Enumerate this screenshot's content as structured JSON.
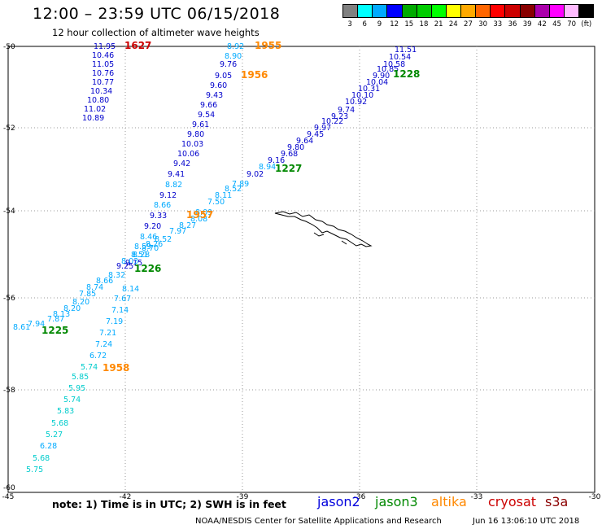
{
  "header": {
    "title": "12:00 – 23:59 UTC 06/15/2018",
    "subtitle": "12 hour collection of altimeter wave heights"
  },
  "legend": {
    "colors": [
      "#808080",
      "#00ffff",
      "#00aaff",
      "#0000ff",
      "#00aa00",
      "#00cc00",
      "#00ff00",
      "#ffff00",
      "#ffaa00",
      "#ff6600",
      "#ff0000",
      "#cc0000",
      "#880000",
      "#aa00aa",
      "#ff00ff",
      "#ffbbff",
      "#000000"
    ],
    "labels": [
      "3",
      "6",
      "9",
      "12",
      "15",
      "18",
      "21",
      "24",
      "27",
      "30",
      "33",
      "36",
      "39",
      "42",
      "45",
      "70",
      "(ft)"
    ]
  },
  "axes": {
    "lat_labels": [
      "-50",
      "-52",
      "-54",
      "-56",
      "-58",
      "-60"
    ],
    "lon_labels": [
      "-45",
      "-42",
      "-39",
      "-36",
      "-33",
      "-30"
    ]
  },
  "points": [
    {
      "v": "11.95",
      "c": "#0000cc"
    },
    {
      "v": "10.46",
      "c": "#0000cc"
    },
    {
      "v": "11.05",
      "c": "#0000cc"
    },
    {
      "v": "10.76",
      "c": "#0000cc"
    },
    {
      "v": "10.77",
      "c": "#0000cc"
    },
    {
      "v": "10.34",
      "c": "#0000cc"
    },
    {
      "v": "10.80",
      "c": "#0000cc"
    },
    {
      "v": "11.02",
      "c": "#0000cc"
    },
    {
      "v": "10.89",
      "c": "#0000cc"
    },
    {
      "v": "8.92",
      "c": "#00aaff"
    },
    {
      "v": "8.90",
      "c": "#00aaff"
    },
    {
      "v": "9.76",
      "c": "#0000cc"
    },
    {
      "v": "9.05",
      "c": "#0000cc"
    },
    {
      "v": "9.60",
      "c": "#0000cc"
    },
    {
      "v": "9.43",
      "c": "#0000cc"
    },
    {
      "v": "9.66",
      "c": "#0000cc"
    },
    {
      "v": "9.54",
      "c": "#0000cc"
    },
    {
      "v": "9.61",
      "c": "#0000cc"
    },
    {
      "v": "9.80",
      "c": "#0000cc"
    },
    {
      "v": "10.03",
      "c": "#0000cc"
    },
    {
      "v": "10.06",
      "c": "#0000cc"
    },
    {
      "v": "9.42",
      "c": "#0000cc"
    },
    {
      "v": "9.41",
      "c": "#0000cc"
    },
    {
      "v": "8.82",
      "c": "#00aaff"
    },
    {
      "v": "9.12",
      "c": "#0000cc"
    },
    {
      "v": "8.66",
      "c": "#00aaff"
    },
    {
      "v": "9.33",
      "c": "#0000cc"
    },
    {
      "v": "9.20",
      "c": "#0000cc"
    },
    {
      "v": "8.46",
      "c": "#00aaff"
    },
    {
      "v": "8.59",
      "c": "#00aaff"
    },
    {
      "v": "8.28",
      "c": "#00aaff"
    },
    {
      "v": "9.15",
      "c": "#0000cc"
    },
    {
      "v": "11.51",
      "c": "#0000cc"
    },
    {
      "v": "10.54",
      "c": "#0000cc"
    },
    {
      "v": "10.58",
      "c": "#0000cc"
    },
    {
      "v": "10.85",
      "c": "#0000cc"
    },
    {
      "v": "9.90",
      "c": "#0000cc"
    },
    {
      "v": "10.04",
      "c": "#0000cc"
    },
    {
      "v": "10.31",
      "c": "#0000cc"
    },
    {
      "v": "10.10",
      "c": "#0000cc"
    },
    {
      "v": "10.92",
      "c": "#0000cc"
    },
    {
      "v": "9.74",
      "c": "#0000cc"
    },
    {
      "v": "9.23",
      "c": "#0000cc"
    },
    {
      "v": "10.22",
      "c": "#0000cc"
    },
    {
      "v": "9.97",
      "c": "#0000cc"
    },
    {
      "v": "9.45",
      "c": "#0000cc"
    },
    {
      "v": "9.64",
      "c": "#0000cc"
    },
    {
      "v": "9.80",
      "c": "#0000cc"
    },
    {
      "v": "9.68",
      "c": "#0000cc"
    },
    {
      "v": "9.16",
      "c": "#0000cc"
    },
    {
      "v": "8.94",
      "c": "#00aaff"
    },
    {
      "v": "9.02",
      "c": "#0000cc"
    },
    {
      "v": "7.89",
      "c": "#00aaff"
    },
    {
      "v": "8.52",
      "c": "#00aaff"
    },
    {
      "v": "8.11",
      "c": "#00aaff"
    },
    {
      "v": "7.50",
      "c": "#00aaff"
    },
    {
      "v": "8.09",
      "c": "#00aaff"
    },
    {
      "v": "8.08",
      "c": "#00aaff"
    },
    {
      "v": "8.27",
      "c": "#00aaff"
    },
    {
      "v": "7.97",
      "c": "#00aaff"
    },
    {
      "v": "8.52",
      "c": "#00aaff"
    },
    {
      "v": "8.26",
      "c": "#00aaff"
    },
    {
      "v": "8.70",
      "c": "#00aaff"
    },
    {
      "v": "8.51",
      "c": "#00aaff"
    },
    {
      "v": "8.03",
      "c": "#00aaff"
    },
    {
      "v": "9.25",
      "c": "#0000cc"
    },
    {
      "v": "8.32",
      "c": "#00aaff"
    },
    {
      "v": "8.66",
      "c": "#00aaff"
    },
    {
      "v": "8.74",
      "c": "#00aaff"
    },
    {
      "v": "7.85",
      "c": "#00aaff"
    },
    {
      "v": "8.20",
      "c": "#00aaff"
    },
    {
      "v": "8.20",
      "c": "#00aaff"
    },
    {
      "v": "8.13",
      "c": "#00aaff"
    },
    {
      "v": "7.87",
      "c": "#00aaff"
    },
    {
      "v": "7.94",
      "c": "#00aaff"
    },
    {
      "v": "8.61",
      "c": "#00aaff"
    },
    {
      "v": "8.14",
      "c": "#00aaff"
    },
    {
      "v": "7.67",
      "c": "#00aaff"
    },
    {
      "v": "7.14",
      "c": "#00aaff"
    },
    {
      "v": "7.19",
      "c": "#00aaff"
    },
    {
      "v": "7.21",
      "c": "#00aaff"
    },
    {
      "v": "7.24",
      "c": "#00aaff"
    },
    {
      "v": "6.72",
      "c": "#00aaff"
    },
    {
      "v": "5.74",
      "c": "#00cccc"
    },
    {
      "v": "5.85",
      "c": "#00cccc"
    },
    {
      "v": "5.95",
      "c": "#00cccc"
    },
    {
      "v": "5.74",
      "c": "#00cccc"
    },
    {
      "v": "5.83",
      "c": "#00cccc"
    },
    {
      "v": "5.68",
      "c": "#00cccc"
    },
    {
      "v": "5.27",
      "c": "#00cccc"
    },
    {
      "v": "6.28",
      "c": "#00aaff"
    },
    {
      "v": "5.68",
      "c": "#00cccc"
    },
    {
      "v": "5.75",
      "c": "#00cccc"
    }
  ],
  "times": [
    {
      "t": "1627",
      "c": "#cc0000"
    },
    {
      "t": "1955",
      "c": "#ff8800"
    },
    {
      "t": "1956",
      "c": "#ff8800"
    },
    {
      "t": "1228",
      "c": "#008800"
    },
    {
      "t": "1227",
      "c": "#008800"
    },
    {
      "t": "1957",
      "c": "#ff8800"
    },
    {
      "t": "1226",
      "c": "#008800"
    },
    {
      "t": "1225",
      "c": "#008800"
    },
    {
      "t": "1958",
      "c": "#ff8800"
    }
  ],
  "footer": {
    "note": "note:  1) Time is in UTC;  2) SWH is in feet",
    "satellites": [
      {
        "name": "jason2",
        "color": "#0000dd"
      },
      {
        "name": "jason3",
        "color": "#008800"
      },
      {
        "name": "altika",
        "color": "#ff8800"
      },
      {
        "name": "cryosat",
        "color": "#cc0000"
      },
      {
        "name": "s3a",
        "color": "#8b0000"
      }
    ],
    "credit": "NOAA/NESDIS Center for Satellite Applications and Research",
    "issued": "Jun 16 13:06:10 UTC 2018"
  }
}
